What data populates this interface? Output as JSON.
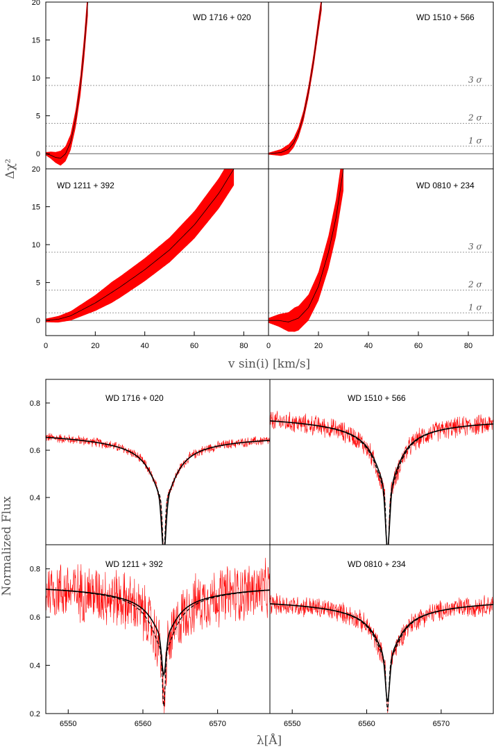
{
  "chart_data": [
    {
      "type": "line",
      "name": "delta-chi2-vs-vsini",
      "xlabel": "v sin(i) [km/s]",
      "ylabel": "Δχ²",
      "xlim": [
        0,
        90
      ],
      "ylim": [
        -2,
        20
      ],
      "xticks": [
        0,
        20,
        40,
        60,
        80
      ],
      "yticks": [
        0,
        5,
        10,
        15,
        20
      ],
      "sigma_levels": [
        {
          "value": 1,
          "label": "1 σ"
        },
        {
          "value": 4,
          "label": "2 σ"
        },
        {
          "value": 9,
          "label": "3 σ"
        }
      ],
      "panels": [
        {
          "label": "WD 1716 + 020",
          "center": [
            [
              0,
              0
            ],
            [
              2,
              -0.2
            ],
            [
              4,
              -0.5
            ],
            [
              6,
              -0.6
            ],
            [
              8,
              0
            ],
            [
              10,
              1.5
            ],
            [
              12,
              4.5
            ],
            [
              14,
              9
            ],
            [
              15.5,
              14
            ],
            [
              17,
              20
            ]
          ],
          "band_width": 1.0
        },
        {
          "label": "WD 1510 + 566",
          "center": [
            [
              0,
              0
            ],
            [
              5,
              0.15
            ],
            [
              8,
              0.6
            ],
            [
              10,
              1.4
            ],
            [
              12,
              2.8
            ],
            [
              14,
              5
            ],
            [
              16,
              8.2
            ],
            [
              18,
              12.2
            ],
            [
              20,
              17
            ],
            [
              21.3,
              20
            ]
          ],
          "band_width": 0.6
        },
        {
          "label": "WD 1211 + 392",
          "center": [
            [
              0,
              0
            ],
            [
              5,
              0.15
            ],
            [
              10,
              0.6
            ],
            [
              20,
              2.3
            ],
            [
              30,
              4.4
            ],
            [
              40,
              6.7
            ],
            [
              50,
              9.3
            ],
            [
              60,
              12.6
            ],
            [
              70,
              16.8
            ],
            [
              76,
              20
            ]
          ],
          "band_width": 1.2
        },
        {
          "label": "WD 0810 + 234",
          "center": [
            [
              0,
              0
            ],
            [
              4,
              0
            ],
            [
              8,
              -0.2
            ],
            [
              12,
              0.3
            ],
            [
              16,
              1.7
            ],
            [
              20,
              4.5
            ],
            [
              24,
              9
            ],
            [
              27,
              13.5
            ],
            [
              30,
              20
            ]
          ],
          "band_width": 1.6
        }
      ],
      "colors": {
        "band": "#ff0000",
        "curve": "#000000",
        "sigma_line": "#999999"
      }
    },
    {
      "type": "line",
      "name": "halpha-line-profiles",
      "xlabel": "λ[Å]",
      "ylabel": "Normalized Flux",
      "xlim": [
        6547,
        6577
      ],
      "ylim": [
        0.2,
        0.9
      ],
      "xticks": [
        6550,
        6560,
        6570
      ],
      "yticks_top": [
        0.4,
        0.6,
        0.8
      ],
      "yticks_bottom": [
        0.2,
        0.4,
        0.6,
        0.8
      ],
      "line_center": 6562.8,
      "panels": [
        {
          "label": "WD 1716 + 020",
          "continuum": [
            0.69,
            0.68
          ],
          "depth_solid": 0.4,
          "depth_dashed": 0.4,
          "noise": 0.012
        },
        {
          "label": "WD 1510 + 566",
          "continuum": [
            0.76,
            0.75
          ],
          "depth_solid": 0.45,
          "depth_dashed": 0.5,
          "noise": 0.025
        },
        {
          "label": "WD 1211 + 392",
          "continuum": [
            0.75,
            0.75
          ],
          "depth_solid": 0.27,
          "depth_dashed": 0.4,
          "noise": 0.07
        },
        {
          "label": "WD 0810 + 234",
          "continuum": [
            0.69,
            0.69
          ],
          "depth_solid": 0.32,
          "depth_dashed": 0.36,
          "noise": 0.025
        }
      ],
      "colors": {
        "spectrum": "#ff0000",
        "model": "#000000"
      }
    }
  ]
}
